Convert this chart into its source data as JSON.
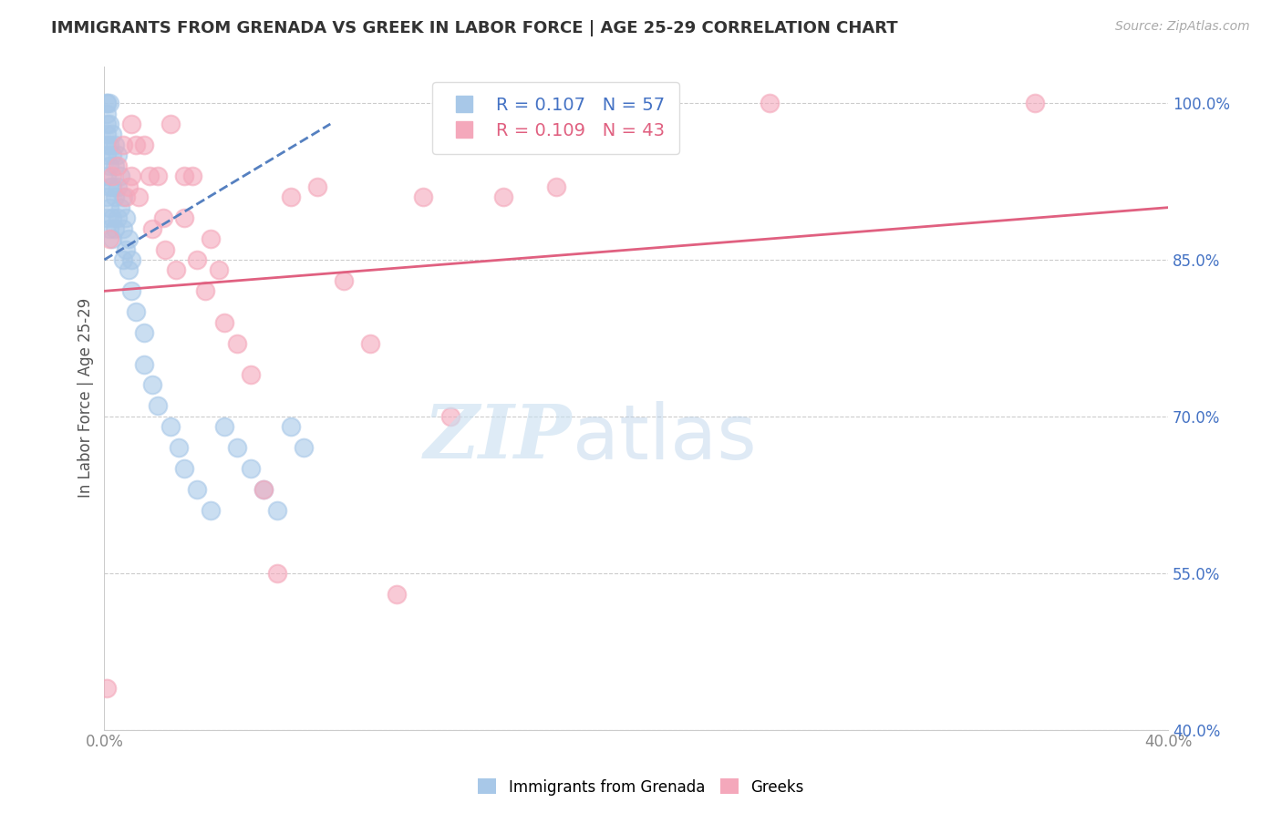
{
  "title": "IMMIGRANTS FROM GRENADA VS GREEK IN LABOR FORCE | AGE 25-29 CORRELATION CHART",
  "source": "Source: ZipAtlas.com",
  "ylabel": "In Labor Force | Age 25-29",
  "x_min": 0.0,
  "x_max": 0.4,
  "y_min": 0.4,
  "y_max": 1.035,
  "y_ticks": [
    0.4,
    0.55,
    0.7,
    0.85,
    1.0
  ],
  "x_ticks": [
    0.0,
    0.05,
    0.1,
    0.15,
    0.2,
    0.25,
    0.3,
    0.35,
    0.4
  ],
  "y_tick_labels": [
    "40.0%",
    "55.0%",
    "70.0%",
    "85.0%",
    "100.0%"
  ],
  "grenada_color": "#a8c8e8",
  "greek_color": "#f4a8bb",
  "grenada_line_color": "#5580c0",
  "greek_line_color": "#e06080",
  "grenada_R": 0.107,
  "grenada_N": 57,
  "greek_R": 0.109,
  "greek_N": 43,
  "legend_grenada_label": "Immigrants from Grenada",
  "legend_greek_label": "Greeks",
  "background_color": "#ffffff",
  "grenada_x": [
    0.001,
    0.001,
    0.001,
    0.001,
    0.001,
    0.001,
    0.001,
    0.001,
    0.001,
    0.001,
    0.002,
    0.002,
    0.002,
    0.002,
    0.002,
    0.002,
    0.002,
    0.003,
    0.003,
    0.003,
    0.003,
    0.003,
    0.004,
    0.004,
    0.004,
    0.004,
    0.005,
    0.005,
    0.005,
    0.006,
    0.006,
    0.007,
    0.007,
    0.007,
    0.008,
    0.008,
    0.009,
    0.009,
    0.01,
    0.01,
    0.012,
    0.015,
    0.015,
    0.018,
    0.02,
    0.025,
    0.028,
    0.03,
    0.035,
    0.04,
    0.045,
    0.05,
    0.055,
    0.06,
    0.065,
    0.07,
    0.075
  ],
  "grenada_y": [
    1.0,
    1.0,
    0.99,
    0.98,
    0.97,
    0.96,
    0.95,
    0.93,
    0.91,
    0.89,
    1.0,
    0.98,
    0.96,
    0.94,
    0.92,
    0.9,
    0.88,
    0.97,
    0.95,
    0.92,
    0.89,
    0.87,
    0.96,
    0.94,
    0.91,
    0.88,
    0.95,
    0.92,
    0.89,
    0.93,
    0.9,
    0.91,
    0.88,
    0.85,
    0.89,
    0.86,
    0.87,
    0.84,
    0.85,
    0.82,
    0.8,
    0.78,
    0.75,
    0.73,
    0.71,
    0.69,
    0.67,
    0.65,
    0.63,
    0.61,
    0.69,
    0.67,
    0.65,
    0.63,
    0.61,
    0.69,
    0.67
  ],
  "greek_x": [
    0.001,
    0.002,
    0.003,
    0.005,
    0.007,
    0.008,
    0.009,
    0.01,
    0.01,
    0.012,
    0.013,
    0.015,
    0.017,
    0.018,
    0.02,
    0.022,
    0.023,
    0.025,
    0.027,
    0.03,
    0.03,
    0.033,
    0.035,
    0.038,
    0.04,
    0.043,
    0.045,
    0.05,
    0.055,
    0.06,
    0.065,
    0.07,
    0.08,
    0.09,
    0.1,
    0.11,
    0.12,
    0.13,
    0.15,
    0.17,
    0.2,
    0.25,
    0.35
  ],
  "greek_y": [
    0.44,
    0.87,
    0.93,
    0.94,
    0.96,
    0.91,
    0.92,
    0.98,
    0.93,
    0.96,
    0.91,
    0.96,
    0.93,
    0.88,
    0.93,
    0.89,
    0.86,
    0.98,
    0.84,
    0.93,
    0.89,
    0.93,
    0.85,
    0.82,
    0.87,
    0.84,
    0.79,
    0.77,
    0.74,
    0.63,
    0.55,
    0.91,
    0.92,
    0.83,
    0.77,
    0.53,
    0.91,
    0.7,
    0.91,
    0.92,
    1.0,
    1.0,
    1.0
  ],
  "grenada_trend_x": [
    0.0,
    0.085
  ],
  "grenada_trend_y": [
    0.85,
    0.98
  ],
  "greek_trend_x": [
    0.0,
    0.4
  ],
  "greek_trend_y": [
    0.82,
    0.9
  ]
}
